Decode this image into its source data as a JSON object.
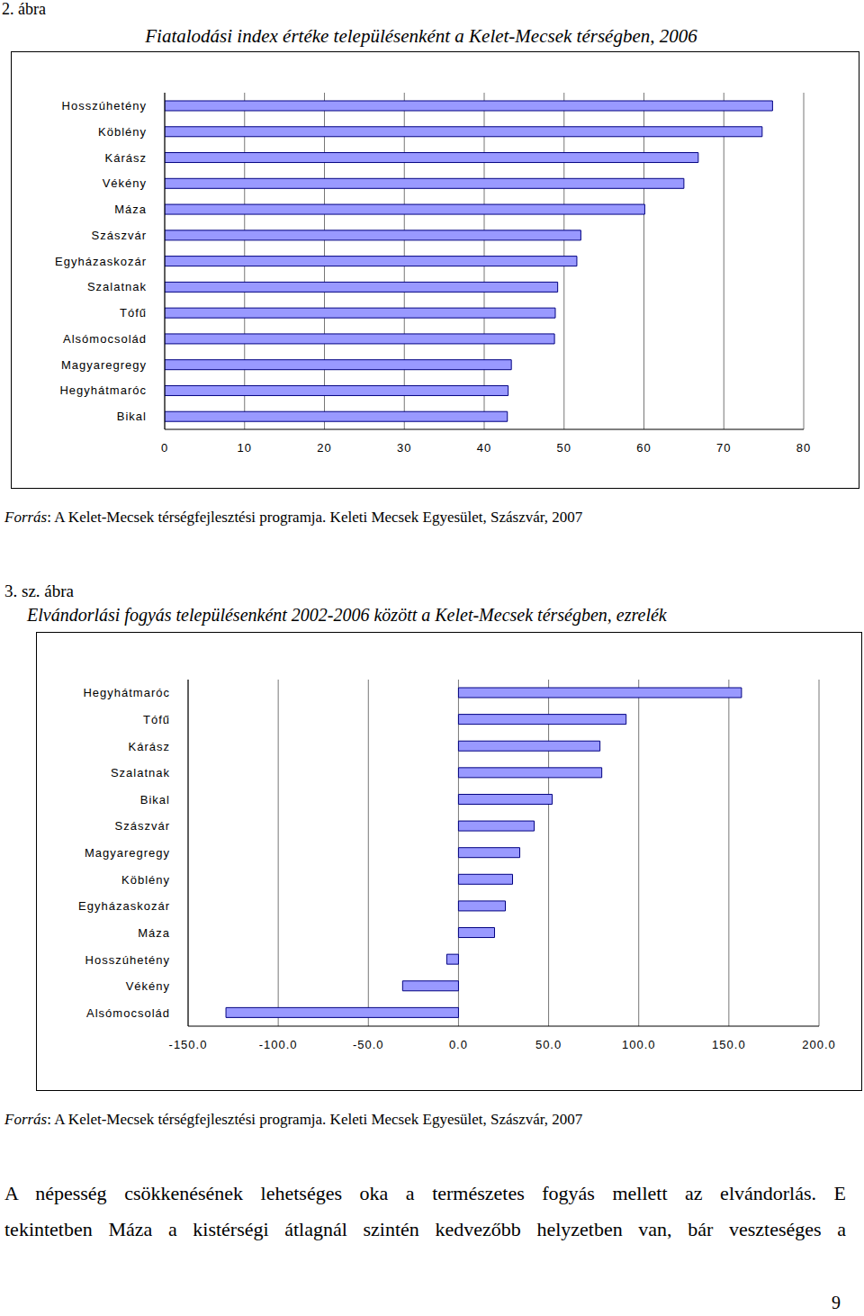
{
  "chart_data": [
    {
      "type": "bar",
      "title": "Fiatalodási index értéke településenként a Kelet-Mecsek térségben, 2006",
      "orientation": "horizontal",
      "categories": [
        "Hosszúhetény",
        "Köblény",
        "Kárász",
        "Vékény",
        "Máza",
        "Szászvár",
        "Egyházaskozár",
        "Szalatnak",
        "Tófű",
        "Alsómocsolád",
        "Magyaregregy",
        "Hegyhátmaróc",
        "Bikal"
      ],
      "values": [
        76.1,
        74.8,
        66.8,
        65.0,
        60.1,
        52.1,
        51.6,
        49.2,
        48.9,
        48.8,
        43.4,
        43.0,
        42.9
      ],
      "color": "#9999ff",
      "xlim": [
        0,
        80
      ],
      "xticks": [
        0,
        10,
        20,
        30,
        40,
        50,
        60,
        70,
        80
      ],
      "grid": true
    },
    {
      "type": "bar",
      "title": "Elvándorlási fogyás településenként 2002-2006 között a Kelet-Mecsek térségben, ezrelék",
      "orientation": "horizontal",
      "categories": [
        "Hegyhátmaróc",
        "Tófű",
        "Kárász",
        "Szalatnak",
        "Bikal",
        "Szászvár",
        "Magyaregregy",
        "Köblény",
        "Egyházaskozár",
        "Máza",
        "Hosszúhetény",
        "Vékény",
        "Alsómocsolád"
      ],
      "values": [
        157,
        93,
        78.5,
        79.5,
        52,
        42,
        34,
        30,
        26,
        20,
        -6.5,
        -31,
        -129
      ],
      "color": "#9999ff",
      "xlim": [
        -150,
        200
      ],
      "xticks": [
        {
          "value": -150,
          "label": "-150.0"
        },
        {
          "value": -100,
          "label": "-100.0"
        },
        {
          "value": -50,
          "label": "-50.0"
        },
        {
          "value": 0,
          "label": "0.0"
        },
        {
          "value": 50,
          "label": "50.0"
        },
        {
          "value": 100,
          "label": "100.0"
        },
        {
          "value": 150,
          "label": "150.0"
        },
        {
          "value": 200,
          "label": "200.0"
        }
      ],
      "grid": true
    }
  ],
  "captions": [
    {
      "label": "2. ábra",
      "source_label": "Forrás",
      "source_text": ": A Kelet-Mecsek térségfejlesztési programja. Keleti Mecsek Egyesület, Szászvár, 2007"
    },
    {
      "label": "3. sz. ábra",
      "source_label": "Forrás",
      "source_text": ": A Kelet-Mecsek térségfejlesztési programja. Keleti Mecsek Egyesület, Szászvár, 2007"
    }
  ],
  "body_text": [
    "A népesség csökkenésének lehetséges oka a természetes fogyás mellett az elvándorlás. E",
    "tekintetben Máza a kistérségi átlagnál szintén kedvezőbb helyzetben van, bár veszteséges a"
  ],
  "page_number": "9"
}
